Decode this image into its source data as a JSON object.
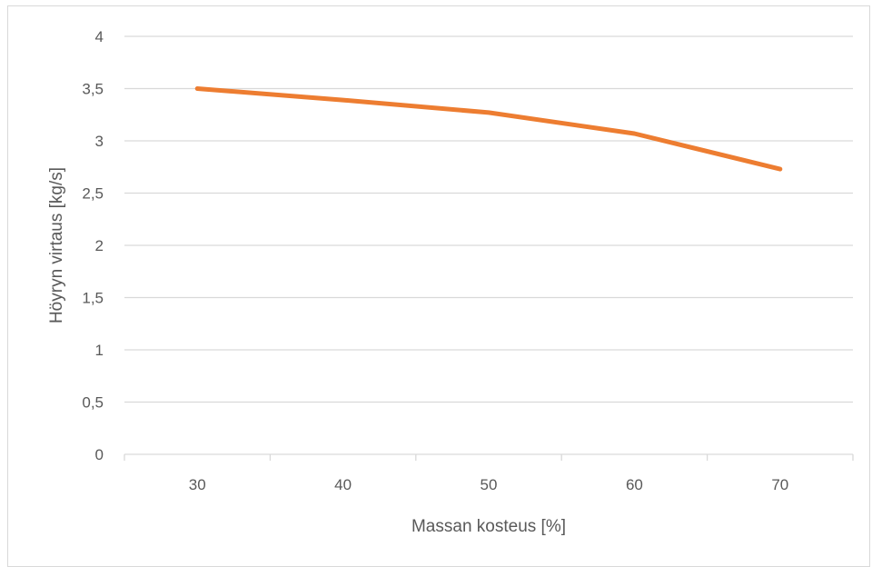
{
  "chart_data": {
    "type": "line",
    "title": "",
    "xlabel": "Massan kosteus [%]",
    "ylabel": "Höyryn virtaus [kg/s]",
    "categories": [
      "30",
      "40",
      "50",
      "60",
      "70"
    ],
    "series": [
      {
        "values": [
          3.5,
          3.39,
          3.27,
          3.07,
          2.73
        ],
        "color": "#ED7D31"
      }
    ],
    "ylim": [
      0,
      4
    ],
    "yticks": [
      0,
      0.5,
      1,
      1.5,
      2,
      2.5,
      3,
      3.5,
      4
    ],
    "ytick_labels": [
      "0",
      "0,5",
      "1",
      "1,5",
      "2",
      "2,5",
      "3",
      "3,5",
      "4"
    ],
    "grid": true,
    "gridline_color": "#d9d9d9",
    "legend": "none"
  }
}
